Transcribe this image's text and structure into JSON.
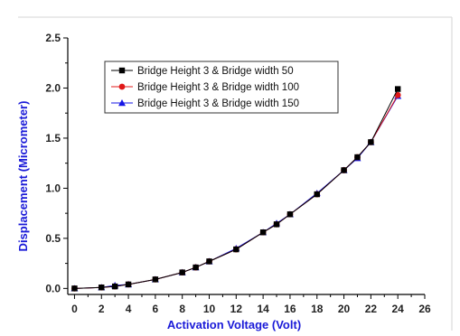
{
  "chart_data": {
    "type": "line",
    "xlabel": "Activation Voltage (Volt)",
    "ylabel": "Displacement (Micrometer)",
    "xlim": [
      -0.5,
      26
    ],
    "ylim": [
      -0.06,
      2.5
    ],
    "x_ticks": [
      0,
      2,
      4,
      6,
      8,
      10,
      12,
      14,
      16,
      18,
      20,
      22,
      24,
      26
    ],
    "y_ticks": [
      0.0,
      0.5,
      1.0,
      1.5,
      2.0,
      2.5
    ],
    "x_tick_labels": [
      "0",
      "2",
      "4",
      "6",
      "8",
      "10",
      "12",
      "14",
      "16",
      "18",
      "20",
      "22",
      "24",
      "26"
    ],
    "y_tick_labels": [
      "0.0",
      "0.5",
      "1.0",
      "1.5",
      "2.0",
      "2.5"
    ],
    "legend_position": "top-left",
    "grid": false,
    "series": [
      {
        "name": "Bridge Height 3 & Bridge width 50",
        "color": "#000000",
        "marker": "square",
        "x": [
          0,
          2,
          3,
          4,
          6,
          8,
          9,
          10,
          12,
          14,
          15,
          16,
          18,
          20,
          21,
          22,
          24
        ],
        "y": [
          0.0,
          0.01,
          0.02,
          0.04,
          0.09,
          0.16,
          0.21,
          0.27,
          0.39,
          0.56,
          0.64,
          0.74,
          0.94,
          1.18,
          1.31,
          1.46,
          1.99
        ]
      },
      {
        "name": "Bridge Height 3 & Bridge width 100",
        "color": "#e01818",
        "marker": "circle",
        "x": [
          0,
          2,
          3,
          4,
          6,
          8,
          9,
          10,
          12,
          14,
          15,
          16,
          18,
          20,
          21,
          22,
          24
        ],
        "y": [
          0.0,
          0.01,
          0.02,
          0.04,
          0.09,
          0.16,
          0.21,
          0.27,
          0.39,
          0.56,
          0.64,
          0.74,
          0.94,
          1.18,
          1.31,
          1.46,
          1.93
        ]
      },
      {
        "name": "Bridge Height 3 & Bridge width 150",
        "color": "#1515e6",
        "marker": "triangle",
        "x": [
          0,
          2,
          3,
          4,
          6,
          8,
          9,
          10,
          12,
          14,
          15,
          16,
          18,
          20,
          21,
          22,
          24
        ],
        "y": [
          0.0,
          0.01,
          0.03,
          0.04,
          0.09,
          0.16,
          0.21,
          0.27,
          0.4,
          0.56,
          0.65,
          0.74,
          0.95,
          1.18,
          1.3,
          1.46,
          1.92
        ]
      }
    ]
  }
}
